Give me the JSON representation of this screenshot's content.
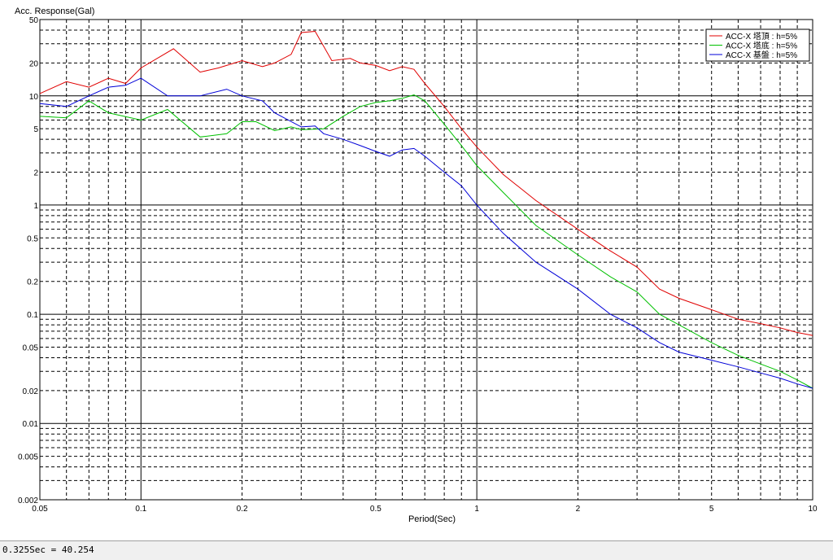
{
  "chart_data": {
    "type": "line",
    "ylabel": "Acc. Response(Gal)",
    "xlabel": "Period(Sec)",
    "x_scale": "log",
    "y_scale": "log",
    "xlim": [
      0.05,
      10
    ],
    "ylim": [
      0.002,
      50
    ],
    "grid": true,
    "legend_position": "top-right",
    "x_tick_labels": [
      "0.05",
      "0.1",
      "0.2",
      "0.5",
      "1",
      "2",
      "5",
      "10"
    ],
    "y_tick_labels": [
      "0.002",
      "0.005",
      "0.01",
      "0.02",
      "0.05",
      "0.1",
      "0.2",
      "0.5",
      "1",
      "2",
      "5",
      "10",
      "20",
      "50"
    ],
    "series": [
      {
        "name": "ACC-X 塔頂 : h=5%",
        "color": "#e00000",
        "points": [
          [
            0.05,
            10.5
          ],
          [
            0.06,
            13.5
          ],
          [
            0.07,
            12
          ],
          [
            0.08,
            14.5
          ],
          [
            0.09,
            13
          ],
          [
            0.1,
            18
          ],
          [
            0.125,
            27
          ],
          [
            0.15,
            16.5
          ],
          [
            0.17,
            18
          ],
          [
            0.2,
            21
          ],
          [
            0.23,
            18.5
          ],
          [
            0.25,
            20
          ],
          [
            0.28,
            24
          ],
          [
            0.3,
            38
          ],
          [
            0.33,
            39
          ],
          [
            0.37,
            21
          ],
          [
            0.42,
            22
          ],
          [
            0.45,
            20
          ],
          [
            0.5,
            19
          ],
          [
            0.55,
            17
          ],
          [
            0.6,
            18.5
          ],
          [
            0.65,
            17.5
          ],
          [
            0.7,
            13
          ],
          [
            0.8,
            8
          ],
          [
            0.9,
            5
          ],
          [
            1.0,
            3.4
          ],
          [
            1.2,
            1.9
          ],
          [
            1.5,
            1.1
          ],
          [
            2.0,
            0.6
          ],
          [
            2.5,
            0.38
          ],
          [
            3.0,
            0.27
          ],
          [
            3.5,
            0.17
          ],
          [
            4.0,
            0.14
          ],
          [
            5.0,
            0.11
          ],
          [
            6.0,
            0.09
          ],
          [
            7.0,
            0.082
          ],
          [
            8.0,
            0.075
          ],
          [
            9.0,
            0.068
          ],
          [
            10.0,
            0.064
          ]
        ]
      },
      {
        "name": "ACC-X 塔底 : h=5%",
        "color": "#00c000",
        "points": [
          [
            0.05,
            6.5
          ],
          [
            0.06,
            6.3
          ],
          [
            0.07,
            9.0
          ],
          [
            0.08,
            7.0
          ],
          [
            0.1,
            6.0
          ],
          [
            0.12,
            7.5
          ],
          [
            0.15,
            4.2
          ],
          [
            0.18,
            4.5
          ],
          [
            0.2,
            5.8
          ],
          [
            0.22,
            5.8
          ],
          [
            0.25,
            4.8
          ],
          [
            0.28,
            5.2
          ],
          [
            0.3,
            4.9
          ],
          [
            0.35,
            5.0
          ],
          [
            0.4,
            6.5
          ],
          [
            0.45,
            8.0
          ],
          [
            0.5,
            8.7
          ],
          [
            0.55,
            9.0
          ],
          [
            0.6,
            9.5
          ],
          [
            0.65,
            10.2
          ],
          [
            0.7,
            9.0
          ],
          [
            0.8,
            5.5
          ],
          [
            0.9,
            3.5
          ],
          [
            1.0,
            2.3
          ],
          [
            1.2,
            1.3
          ],
          [
            1.5,
            0.65
          ],
          [
            2.0,
            0.35
          ],
          [
            2.5,
            0.22
          ],
          [
            3.0,
            0.16
          ],
          [
            3.5,
            0.1
          ],
          [
            4.0,
            0.08
          ],
          [
            5.0,
            0.055
          ],
          [
            6.0,
            0.042
          ],
          [
            7.0,
            0.035
          ],
          [
            8.0,
            0.03
          ],
          [
            9.0,
            0.025
          ],
          [
            10.0,
            0.021
          ]
        ]
      },
      {
        "name": "ACC-X 基盤 : h=5%",
        "color": "#0000d8",
        "points": [
          [
            0.05,
            8.5
          ],
          [
            0.06,
            8.0
          ],
          [
            0.07,
            10.0
          ],
          [
            0.08,
            12.0
          ],
          [
            0.09,
            12.5
          ],
          [
            0.1,
            14.5
          ],
          [
            0.12,
            10.0
          ],
          [
            0.15,
            10.0
          ],
          [
            0.18,
            11.5
          ],
          [
            0.2,
            10.0
          ],
          [
            0.23,
            9.0
          ],
          [
            0.25,
            7.0
          ],
          [
            0.3,
            5.2
          ],
          [
            0.33,
            5.3
          ],
          [
            0.35,
            4.5
          ],
          [
            0.4,
            4.0
          ],
          [
            0.45,
            3.5
          ],
          [
            0.5,
            3.1
          ],
          [
            0.55,
            2.8
          ],
          [
            0.6,
            3.2
          ],
          [
            0.65,
            3.3
          ],
          [
            0.7,
            2.8
          ],
          [
            0.8,
            2.0
          ],
          [
            0.9,
            1.5
          ],
          [
            1.0,
            1.0
          ],
          [
            1.2,
            0.55
          ],
          [
            1.5,
            0.3
          ],
          [
            2.0,
            0.17
          ],
          [
            2.5,
            0.1
          ],
          [
            3.0,
            0.075
          ],
          [
            3.5,
            0.055
          ],
          [
            4.0,
            0.045
          ],
          [
            5.0,
            0.038
          ],
          [
            6.0,
            0.033
          ],
          [
            7.0,
            0.029
          ],
          [
            8.0,
            0.026
          ],
          [
            9.0,
            0.023
          ],
          [
            10.0,
            0.021
          ]
        ]
      }
    ]
  },
  "status": {
    "text": "0.325Sec = 40.254"
  }
}
